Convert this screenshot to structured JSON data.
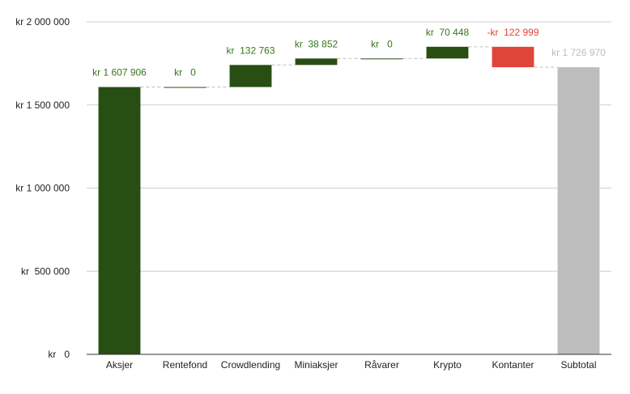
{
  "chart_data": {
    "type": "waterfall",
    "title": "",
    "xlabel": "",
    "ylabel": "",
    "ylim": [
      0,
      2000000
    ],
    "yticks": [
      0,
      500000,
      1000000,
      1500000,
      2000000
    ],
    "ytick_labels": [
      "kr   0",
      "kr  500 000",
      "kr 1 000 000",
      "kr 1 500 000",
      "kr 2 000 000"
    ],
    "grid": true,
    "legend": "none",
    "categories": [
      "Aksjer",
      "Rentefond",
      "Crowdlending",
      "Miniaksjer",
      "Råvarer",
      "Krypto",
      "Kontanter",
      "Subtotal"
    ],
    "values": [
      1607906,
      0,
      132763,
      38852,
      0,
      70448,
      -122999,
      1726970
    ],
    "kinds": [
      "increase",
      "increase",
      "increase",
      "increase",
      "increase",
      "increase",
      "decrease",
      "total"
    ],
    "data_labels": [
      "kr 1 607 906",
      "kr   0",
      "kr  132 763",
      "kr  38 852",
      "kr   0",
      "kr  70 448",
      "-kr  122 999",
      "kr 1 726 970"
    ],
    "colors": {
      "increase": "#274e13",
      "decrease": "#e0453a",
      "total": "#bdbdbd",
      "increase_label": "#38761d",
      "decrease_label": "#e0453a",
      "total_label": "#bdbdbd",
      "axis_text": "#222222",
      "grid": "#cccccc",
      "connector": "#bdbdbd"
    }
  }
}
